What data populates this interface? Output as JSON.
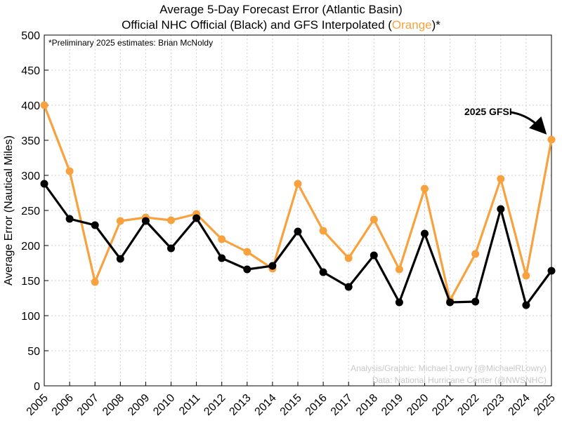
{
  "chart_data": {
    "type": "line",
    "title_line1": "Average 5-Day Forecast Error (Atlantic Basin)",
    "title_line2_pre": "Official NHC Official (Black) and GFS Interpolated (",
    "title_line2_orange": "Orange",
    "title_line2_post": ")*",
    "ylabel": "Average Error (Nautical Miles)",
    "xlabel": "",
    "ylim": [
      0,
      500
    ],
    "yticks": [
      "0",
      "50",
      "100",
      "150",
      "200",
      "250",
      "300",
      "350",
      "400",
      "450",
      "500"
    ],
    "categories": [
      "2005",
      "2006",
      "2007",
      "2008",
      "2009",
      "2010",
      "2011",
      "2012",
      "2013",
      "2014",
      "2015",
      "2016",
      "2017",
      "2018",
      "2019",
      "2020",
      "2021",
      "2022",
      "2023",
      "2024",
      "2025"
    ],
    "series": [
      {
        "name": "GFS Interpolated",
        "color": "#f7a23f",
        "values": [
          400,
          306,
          148,
          235,
          240,
          236,
          245,
          209,
          191,
          167,
          288,
          221,
          182,
          237,
          166,
          281,
          122,
          188,
          295,
          157,
          351
        ]
      },
      {
        "name": "Official NHC",
        "color": "#000000",
        "values": [
          288,
          238,
          229,
          181,
          235,
          196,
          239,
          182,
          166,
          171,
          220,
          162,
          141,
          186,
          119,
          217,
          119,
          120,
          252,
          115,
          164
        ]
      }
    ],
    "grid": true,
    "note": "*Preliminary 2025 estimates: Brian McNoldy",
    "credit_line1": "Analysis/Graphic: Michael Lowry (@MichaelRLowry)",
    "credit_line2": "Data: National Hurricane Center (@NWSNHC)",
    "callout": "2025 GFSI"
  }
}
